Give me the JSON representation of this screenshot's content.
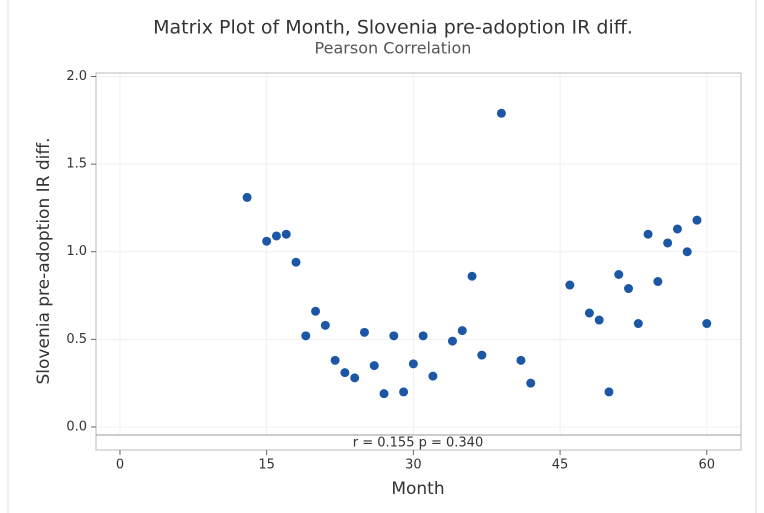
{
  "chart_data": {
    "type": "scatter",
    "title": "Matrix Plot of Month, Slovenia pre-adoption IR diff.",
    "subtitle": "Pearson Correlation",
    "x_label": "Month",
    "y_label": "Slovenia pre-adoption IR diff.",
    "annotation": "r = 0.155  p = 0.340",
    "x": [
      13,
      15,
      16,
      17,
      18,
      19,
      20,
      21,
      22,
      23,
      24,
      25,
      26,
      27,
      28,
      29,
      30,
      31,
      32,
      34,
      35,
      36,
      37,
      39,
      41,
      42,
      46,
      48,
      49,
      50,
      51,
      52,
      53,
      54,
      55,
      56,
      57,
      58,
      59,
      60
    ],
    "values": [
      1.31,
      1.06,
      1.09,
      1.1,
      0.94,
      0.52,
      0.66,
      0.58,
      0.38,
      0.31,
      0.28,
      0.54,
      0.35,
      0.19,
      0.52,
      0.2,
      0.36,
      0.52,
      0.29,
      0.49,
      0.55,
      0.86,
      0.41,
      1.79,
      0.38,
      0.25,
      0.81,
      0.65,
      0.61,
      0.2,
      0.87,
      0.79,
      0.59,
      1.1,
      0.83,
      1.05,
      1.13,
      1.0,
      1.18,
      0.59
    ],
    "color": "#1c57a5",
    "xlim": [
      -2.45,
      63.5
    ],
    "ylim": [
      -0.046,
      2.02
    ],
    "xticks": [
      0,
      15,
      30,
      45,
      60
    ],
    "yticks": [
      {
        "value": 0,
        "label": "0.0"
      },
      0.5,
      {
        "value": 1,
        "label": "1.0"
      },
      1.5,
      {
        "value": 2,
        "label": "2.0"
      }
    ],
    "grid": true
  }
}
